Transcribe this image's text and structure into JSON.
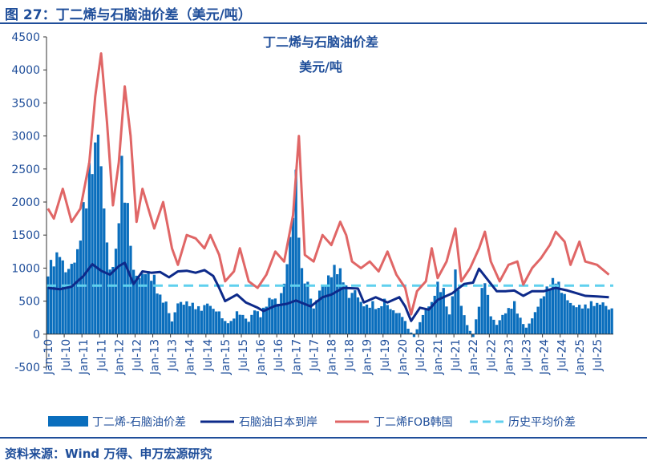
{
  "figure_title": "图 27：丁二烯与石脑油价差（美元/吨）",
  "source_text": "资料来源：Wind 万得、申万宏源研究",
  "colors": {
    "spread_bar": "#0a6ebd",
    "naphtha_line": "#0d2a8a",
    "butadiene_line": "#e06666",
    "average_line": "#5fd0ee",
    "brand": "#1f4e9a"
  },
  "chart_data": {
    "type": "bar",
    "title": "丁二烯与石脑油价差",
    "subtitle": "美元/吨",
    "ylim": [
      -500,
      4500
    ],
    "yticks": [
      -500,
      0,
      500,
      1000,
      1500,
      2000,
      2500,
      3000,
      3500,
      4000,
      4500
    ],
    "x_start": "2010-01",
    "x_end": "2025-12",
    "xtick_labels": [
      "Jan-10",
      "Jul-10",
      "Jan-11",
      "Jul-11",
      "Jan-12",
      "Jul-12",
      "Jan-13",
      "Jul-13",
      "Jan-14",
      "Jul-14",
      "Jan-15",
      "Jul-15",
      "Jan-16",
      "Jul-16",
      "Jan-17",
      "Jul-17",
      "Jan-18",
      "Jul-18",
      "Jan-19",
      "Jul-19",
      "Jan-20",
      "Jul-20",
      "Jan-21",
      "Jul-21",
      "Jan-22",
      "Jul-22",
      "Jan-23",
      "Jul-23",
      "Jan-24",
      "Jul-24",
      "Jan-25",
      "Jul-25"
    ],
    "legend_position": "bottom",
    "series": [
      {
        "name": "丁二烯-石脑油价差",
        "kind": "bar",
        "points": [
          [
            "2010-01",
            1050
          ],
          [
            "2010-03",
            1200
          ],
          [
            "2010-05",
            1300
          ],
          [
            "2010-07",
            1000
          ],
          [
            "2010-09",
            1100
          ],
          [
            "2010-11",
            1300
          ],
          [
            "2011-01",
            2000
          ],
          [
            "2011-03",
            2600
          ],
          [
            "2011-05",
            2950
          ],
          [
            "2011-06",
            3300
          ],
          [
            "2011-08",
            2000
          ],
          [
            "2011-10",
            1000
          ],
          [
            "2011-12",
            1300
          ],
          [
            "2012-02",
            2700
          ],
          [
            "2012-04",
            2000
          ],
          [
            "2012-06",
            1000
          ],
          [
            "2012-08",
            900
          ],
          [
            "2012-10",
            1000
          ],
          [
            "2013-01",
            900
          ],
          [
            "2013-03",
            600
          ],
          [
            "2013-05",
            500
          ],
          [
            "2013-07",
            200
          ],
          [
            "2013-09",
            500
          ],
          [
            "2013-11",
            500
          ],
          [
            "2014-01",
            500
          ],
          [
            "2014-03",
            450
          ],
          [
            "2014-05",
            400
          ],
          [
            "2014-07",
            500
          ],
          [
            "2014-09",
            400
          ],
          [
            "2014-11",
            350
          ],
          [
            "2015-01",
            200
          ],
          [
            "2015-03",
            200
          ],
          [
            "2015-05",
            350
          ],
          [
            "2015-07",
            300
          ],
          [
            "2015-09",
            200
          ],
          [
            "2015-11",
            400
          ],
          [
            "2016-01",
            300
          ],
          [
            "2016-03",
            500
          ],
          [
            "2016-05",
            600
          ],
          [
            "2016-07",
            500
          ],
          [
            "2016-09",
            800
          ],
          [
            "2016-11",
            1500
          ],
          [
            "2017-01",
            2500
          ],
          [
            "2017-03",
            1000
          ],
          [
            "2017-05",
            800
          ],
          [
            "2017-07",
            400
          ],
          [
            "2017-09",
            700
          ],
          [
            "2017-11",
            800
          ],
          [
            "2018-01",
            1000
          ],
          [
            "2018-03",
            1100
          ],
          [
            "2018-05",
            900
          ],
          [
            "2018-07",
            600
          ],
          [
            "2018-09",
            700
          ],
          [
            "2018-11",
            500
          ],
          [
            "2019-01",
            450
          ],
          [
            "2019-03",
            500
          ],
          [
            "2019-05",
            400
          ],
          [
            "2019-07",
            550
          ],
          [
            "2019-09",
            400
          ],
          [
            "2019-11",
            350
          ],
          [
            "2020-01",
            300
          ],
          [
            "2020-03",
            100
          ],
          [
            "2020-05",
            -50
          ],
          [
            "2020-07",
            200
          ],
          [
            "2020-09",
            400
          ],
          [
            "2020-11",
            500
          ],
          [
            "2021-01",
            800
          ],
          [
            "2021-03",
            700
          ],
          [
            "2021-05",
            300
          ],
          [
            "2021-07",
            1000
          ],
          [
            "2021-09",
            450
          ],
          [
            "2021-11",
            150
          ],
          [
            "2022-01",
            -50
          ],
          [
            "2022-03",
            500
          ],
          [
            "2022-05",
            900
          ],
          [
            "2022-07",
            300
          ],
          [
            "2022-09",
            150
          ],
          [
            "2022-11",
            300
          ],
          [
            "2023-01",
            400
          ],
          [
            "2023-03",
            500
          ],
          [
            "2023-05",
            250
          ],
          [
            "2023-07",
            100
          ],
          [
            "2023-09",
            250
          ],
          [
            "2023-11",
            450
          ],
          [
            "2024-01",
            650
          ],
          [
            "2024-03",
            800
          ],
          [
            "2024-05",
            900
          ],
          [
            "2024-07",
            700
          ],
          [
            "2024-09",
            550
          ],
          [
            "2024-11",
            450
          ],
          [
            "2025-01",
            450
          ],
          [
            "2025-03",
            450
          ],
          [
            "2025-05",
            500
          ],
          [
            "2025-07",
            480
          ],
          [
            "2025-09",
            500
          ],
          [
            "2025-11",
            400
          ]
        ]
      },
      {
        "name": "石脑油日本到岸",
        "kind": "line",
        "points": [
          [
            "2010-01",
            700
          ],
          [
            "2010-05",
            680
          ],
          [
            "2010-09",
            720
          ],
          [
            "2011-01",
            880
          ],
          [
            "2011-04",
            1060
          ],
          [
            "2011-07",
            960
          ],
          [
            "2011-10",
            900
          ],
          [
            "2012-01",
            1030
          ],
          [
            "2012-03",
            1080
          ],
          [
            "2012-06",
            760
          ],
          [
            "2012-09",
            950
          ],
          [
            "2012-12",
            930
          ],
          [
            "2013-03",
            940
          ],
          [
            "2013-06",
            860
          ],
          [
            "2013-09",
            950
          ],
          [
            "2013-12",
            960
          ],
          [
            "2014-03",
            930
          ],
          [
            "2014-06",
            970
          ],
          [
            "2014-09",
            880
          ],
          [
            "2014-11",
            700
          ],
          [
            "2015-01",
            500
          ],
          [
            "2015-05",
            600
          ],
          [
            "2015-08",
            480
          ],
          [
            "2015-12",
            400
          ],
          [
            "2016-02",
            350
          ],
          [
            "2016-06",
            430
          ],
          [
            "2016-10",
            460
          ],
          [
            "2017-01",
            510
          ],
          [
            "2017-06",
            420
          ],
          [
            "2017-10",
            560
          ],
          [
            "2018-01",
            600
          ],
          [
            "2018-05",
            700
          ],
          [
            "2018-10",
            690
          ],
          [
            "2018-12",
            480
          ],
          [
            "2019-04",
            560
          ],
          [
            "2019-08",
            480
          ],
          [
            "2019-12",
            560
          ],
          [
            "2020-02",
            420
          ],
          [
            "2020-04",
            200
          ],
          [
            "2020-07",
            400
          ],
          [
            "2020-10",
            370
          ],
          [
            "2021-01",
            520
          ],
          [
            "2021-06",
            620
          ],
          [
            "2021-10",
            760
          ],
          [
            "2022-01",
            780
          ],
          [
            "2022-03",
            990
          ],
          [
            "2022-06",
            820
          ],
          [
            "2022-09",
            650
          ],
          [
            "2022-12",
            650
          ],
          [
            "2023-03",
            660
          ],
          [
            "2023-06",
            580
          ],
          [
            "2023-09",
            650
          ],
          [
            "2024-01",
            650
          ],
          [
            "2024-05",
            700
          ],
          [
            "2024-09",
            660
          ],
          [
            "2024-12",
            620
          ],
          [
            "2025-03",
            580
          ],
          [
            "2025-07",
            570
          ],
          [
            "2025-11",
            560
          ]
        ]
      },
      {
        "name": "丁二烯FOB韩国",
        "kind": "line",
        "points": [
          [
            "2010-01",
            1900
          ],
          [
            "2010-03",
            1750
          ],
          [
            "2010-06",
            2200
          ],
          [
            "2010-09",
            1700
          ],
          [
            "2010-12",
            1900
          ],
          [
            "2011-03",
            2600
          ],
          [
            "2011-05",
            3600
          ],
          [
            "2011-07",
            4250
          ],
          [
            "2011-09",
            3200
          ],
          [
            "2011-11",
            1950
          ],
          [
            "2012-01",
            2600
          ],
          [
            "2012-03",
            3750
          ],
          [
            "2012-05",
            3000
          ],
          [
            "2012-07",
            1700
          ],
          [
            "2012-09",
            2200
          ],
          [
            "2012-11",
            1900
          ],
          [
            "2013-01",
            1600
          ],
          [
            "2013-04",
            2000
          ],
          [
            "2013-07",
            1300
          ],
          [
            "2013-09",
            1050
          ],
          [
            "2013-12",
            1500
          ],
          [
            "2014-03",
            1450
          ],
          [
            "2014-06",
            1300
          ],
          [
            "2014-08",
            1500
          ],
          [
            "2014-11",
            1200
          ],
          [
            "2015-01",
            800
          ],
          [
            "2015-04",
            950
          ],
          [
            "2015-06",
            1300
          ],
          [
            "2015-09",
            800
          ],
          [
            "2015-12",
            700
          ],
          [
            "2016-03",
            900
          ],
          [
            "2016-06",
            1250
          ],
          [
            "2016-09",
            1100
          ],
          [
            "2016-12",
            1800
          ],
          [
            "2017-02",
            3000
          ],
          [
            "2017-04",
            1200
          ],
          [
            "2017-07",
            1100
          ],
          [
            "2017-10",
            1500
          ],
          [
            "2018-01",
            1350
          ],
          [
            "2018-04",
            1700
          ],
          [
            "2018-06",
            1500
          ],
          [
            "2018-08",
            1100
          ],
          [
            "2018-11",
            1000
          ],
          [
            "2019-02",
            1100
          ],
          [
            "2019-05",
            950
          ],
          [
            "2019-08",
            1250
          ],
          [
            "2019-11",
            900
          ],
          [
            "2020-02",
            700
          ],
          [
            "2020-04",
            300
          ],
          [
            "2020-06",
            650
          ],
          [
            "2020-09",
            800
          ],
          [
            "2020-11",
            1300
          ],
          [
            "2021-01",
            850
          ],
          [
            "2021-04",
            1100
          ],
          [
            "2021-07",
            1600
          ],
          [
            "2021-09",
            800
          ],
          [
            "2021-12",
            1000
          ],
          [
            "2022-03",
            1300
          ],
          [
            "2022-05",
            1550
          ],
          [
            "2022-07",
            1100
          ],
          [
            "2022-10",
            800
          ],
          [
            "2023-01",
            1050
          ],
          [
            "2023-04",
            1100
          ],
          [
            "2023-06",
            750
          ],
          [
            "2023-09",
            1000
          ],
          [
            "2023-12",
            1150
          ],
          [
            "2024-03",
            1350
          ],
          [
            "2024-05",
            1550
          ],
          [
            "2024-08",
            1400
          ],
          [
            "2024-10",
            1050
          ],
          [
            "2025-01",
            1400
          ],
          [
            "2025-03",
            1100
          ],
          [
            "2025-07",
            1050
          ],
          [
            "2025-11",
            900
          ]
        ]
      },
      {
        "name": "历史平均价差",
        "kind": "hline",
        "value": 735
      }
    ]
  }
}
